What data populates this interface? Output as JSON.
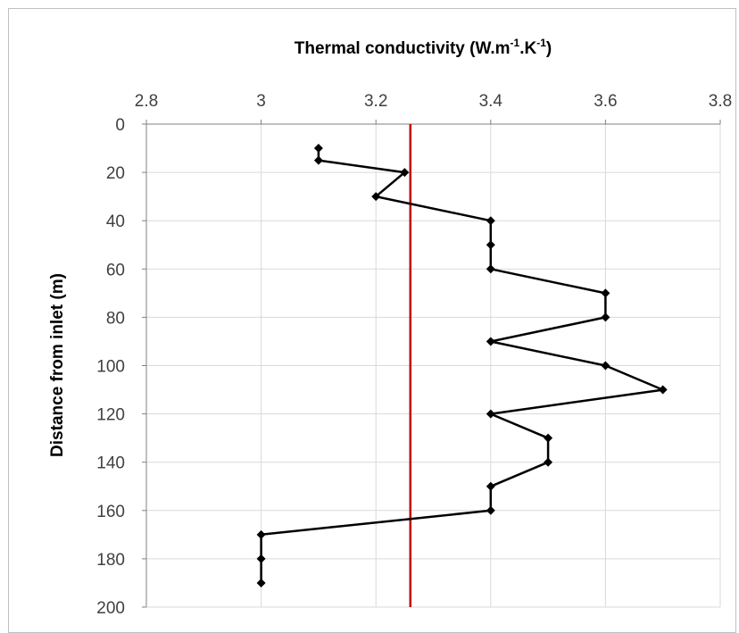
{
  "chart_data": {
    "type": "line",
    "orientation": "depth-profile (x on top axis, y inverted downward)",
    "title": "",
    "xlabel": "Thermal conductivity (W.m-1.K-1)",
    "xlabel_parts": {
      "main": "Thermal conductivity (W.m",
      "sup1": "-1",
      "mid": ".K",
      "sup2": "-1",
      "end": ")"
    },
    "ylabel": "Distance from inlet (m)",
    "xlim": [
      2.8,
      3.8
    ],
    "ylim": [
      0,
      200
    ],
    "y_inverted": true,
    "x_ticks": [
      "2.8",
      "3",
      "3.2",
      "3.4",
      "3.6",
      "3.8"
    ],
    "x_tick_values": [
      2.8,
      3.0,
      3.2,
      3.4,
      3.6,
      3.8
    ],
    "y_ticks": [
      "0",
      "20",
      "40",
      "60",
      "80",
      "100",
      "120",
      "140",
      "160",
      "180",
      "200"
    ],
    "y_tick_values": [
      0,
      20,
      40,
      60,
      80,
      100,
      120,
      140,
      160,
      180,
      200
    ],
    "grid": true,
    "series": [
      {
        "points": [
          {
            "x": 3.1,
            "y": 10
          },
          {
            "x": 3.1,
            "y": 15
          },
          {
            "x": 3.25,
            "y": 20
          },
          {
            "x": 3.2,
            "y": 30
          },
          {
            "x": 3.4,
            "y": 40
          },
          {
            "x": 3.4,
            "y": 50
          },
          {
            "x": 3.4,
            "y": 60
          },
          {
            "x": 3.6,
            "y": 70
          },
          {
            "x": 3.6,
            "y": 80
          },
          {
            "x": 3.4,
            "y": 90
          },
          {
            "x": 3.6,
            "y": 100
          },
          {
            "x": 3.7,
            "y": 110
          },
          {
            "x": 3.4,
            "y": 120
          },
          {
            "x": 3.5,
            "y": 130
          },
          {
            "x": 3.5,
            "y": 140
          },
          {
            "x": 3.4,
            "y": 150
          },
          {
            "x": 3.4,
            "y": 160
          },
          {
            "x": 3.0,
            "y": 170
          },
          {
            "x": 3.0,
            "y": 180
          },
          {
            "x": 3.0,
            "y": 190
          }
        ],
        "color": "#000000",
        "marker": "diamond"
      }
    ],
    "reference_line": {
      "x": 3.26,
      "orientation": "vertical",
      "color": "#c00000"
    },
    "colors": {
      "grid": "#d9d9d9",
      "axis": "#808080",
      "tick_text": "#404040"
    }
  }
}
